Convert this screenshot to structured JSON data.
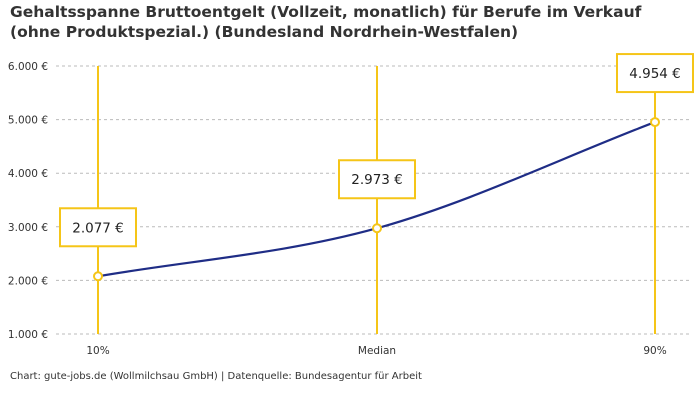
{
  "title": "Gehaltsspanne Bruttoentgelt (Vollzeit, monatlich) für Berufe im Verkauf (ohne Produktspezial.) (Bundesland Nordrhein-Westfalen)",
  "footer": "Chart: gute-jobs.de (Wollmilchsau GmbH) | Datenquelle: Bundesagentur für Arbeit",
  "colors": {
    "line": "#1f2d86",
    "accent": "#f5c518",
    "grid": "#bbbbbb",
    "text": "#333333"
  },
  "chart_data": {
    "type": "line",
    "title": "Gehaltsspanne Bruttoentgelt (Vollzeit, monatlich) für Berufe im Verkauf (ohne Produktspezial.) (Bundesland Nordrhein-Westfalen)",
    "categories": [
      "10%",
      "Median",
      "90%"
    ],
    "values": [
      2077,
      2973,
      4954
    ],
    "value_labels": [
      "2.077 €",
      "2.973 €",
      "4.954 €"
    ],
    "ylim": [
      1000,
      6000
    ],
    "yticks": [
      1000,
      2000,
      3000,
      4000,
      5000,
      6000
    ],
    "ytick_labels": [
      "1.000 €",
      "2.000 €",
      "3.000 €",
      "4.000 €",
      "5.000 €",
      "6.000 €"
    ],
    "grid": true,
    "xlabel": "",
    "ylabel": ""
  }
}
